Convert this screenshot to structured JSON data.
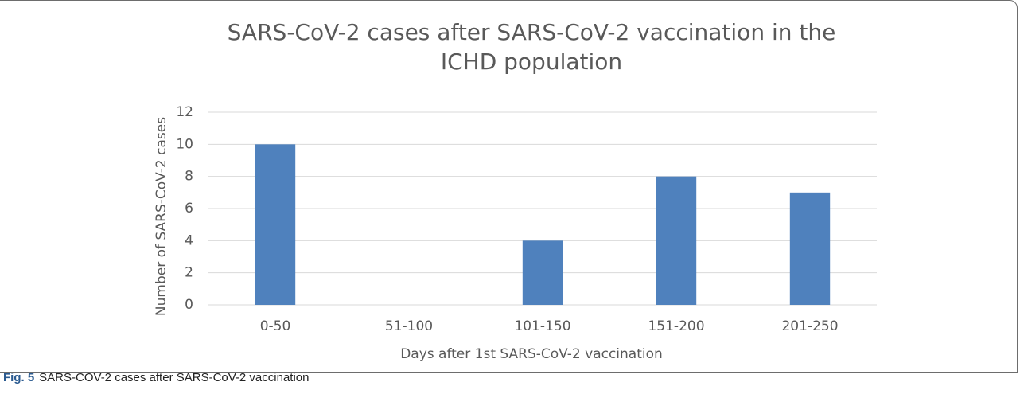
{
  "chart_data": {
    "type": "bar",
    "title": "SARS-CoV-2 cases after SARS-CoV-2 vaccination in the ICHD population",
    "xlabel": "Days after 1st SARS-CoV-2 vaccination",
    "ylabel": "Number of SARS-CoV-2 cases",
    "categories": [
      "0-50",
      "51-100",
      "101-150",
      "151-200",
      "201-250"
    ],
    "values": [
      10,
      0,
      4,
      8,
      7
    ],
    "color": "#4f81bd",
    "ylim": [
      0,
      12
    ],
    "yticks": [
      0,
      2,
      4,
      6,
      8,
      10,
      12
    ],
    "grid": true
  },
  "caption": {
    "label": "Fig. 5",
    "text": "SARS-COV-2 cases after SARS-CoV-2 vaccination"
  }
}
